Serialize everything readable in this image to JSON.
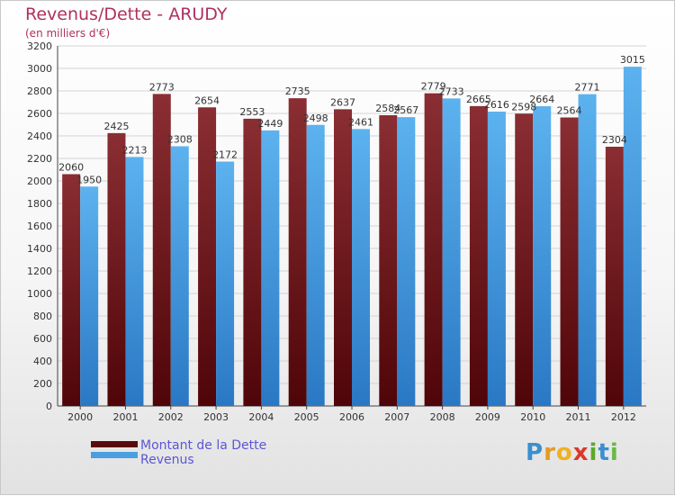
{
  "header": {
    "title": "Revenus/Dette - ARUDY",
    "subtitle": "(en milliers d'€)"
  },
  "legend": [
    {
      "label": "Montant de la Dette",
      "color": "#7a1f25"
    },
    {
      "label": "Revenus",
      "color": "#4a9fe0"
    }
  ],
  "logo": {
    "text": "Proxiti"
  },
  "chart_data": {
    "type": "bar",
    "categories": [
      "2000",
      "2001",
      "2002",
      "2003",
      "2004",
      "2005",
      "2006",
      "2007",
      "2008",
      "2009",
      "2010",
      "2011",
      "2012"
    ],
    "series": [
      {
        "name": "Montant de la Dette",
        "color": "#7a1f25",
        "values": [
          2060,
          2425,
          2773,
          2654,
          2553,
          2735,
          2637,
          2584,
          2779,
          2665,
          2598,
          2564,
          2304
        ]
      },
      {
        "name": "Revenus",
        "color": "#4a9fe0",
        "values": [
          1950,
          2213,
          2308,
          2172,
          2449,
          2498,
          2461,
          2567,
          2733,
          2616,
          2664,
          2771,
          3015
        ]
      }
    ],
    "ylim": [
      0,
      3200
    ],
    "ytick_step": 200,
    "grid": true
  }
}
